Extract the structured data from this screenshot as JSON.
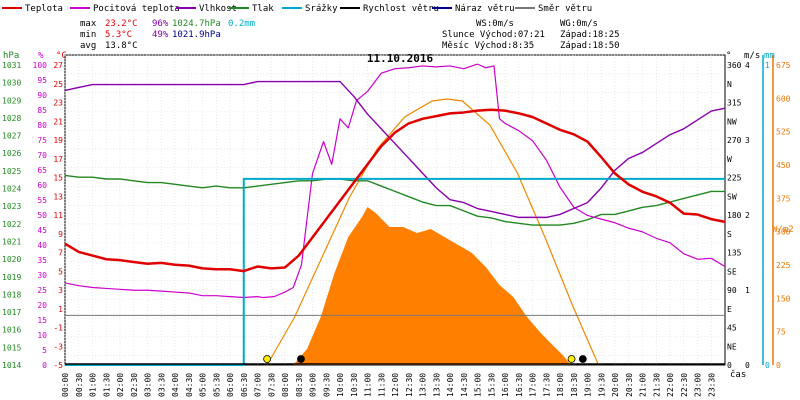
{
  "chart_data": {
    "type": "line",
    "title": "11.10.2016",
    "legend": [
      {
        "label": "Teplota",
        "color": "#e00000"
      },
      {
        "label": "Pocitová teplota",
        "color": "#cc00cc"
      },
      {
        "label": "Vlhkost",
        "color": "#8800aa"
      },
      {
        "label": "Tlak",
        "color": "#228822"
      },
      {
        "label": "Srážky",
        "color": "#00aacc"
      },
      {
        "label": "Rychlost větru",
        "color": "#000000"
      },
      {
        "label": "Náraz větru",
        "color": "#000088"
      },
      {
        "label": "Směr větru",
        "color": "#777777"
      }
    ],
    "stats": {
      "max": {
        "label": "max",
        "temp": "23.2°C",
        "hum": "96%",
        "press": "1024.7hPa",
        "rain": "0.2mm"
      },
      "min": {
        "label": "min",
        "temp": "5.3°C",
        "hum": "49%",
        "press": "1021.9hPa"
      },
      "avg": {
        "label": "avg",
        "temp": "13.8°C"
      }
    },
    "info": {
      "ws": "WS:0m/s",
      "wg": "WG:0m/s",
      "sun": "Slunce Východ:07:21",
      "sun_set": "Západ:18:25",
      "moon": "Měsíc  Východ:8:35",
      "moon_set": "Západ:18:50"
    },
    "axes": {
      "hpa_label": "hPa",
      "pct_label": "%",
      "c_label": "°C",
      "deg_label": "°",
      "ms_label": "m/s",
      "mm_label": "mm",
      "wm2_label": "W/m2",
      "x_label": "čas",
      "hpa_ticks": [
        "1031",
        "1030",
        "1029",
        "1028",
        "1027",
        "1026",
        "1025",
        "1024",
        "1023",
        "1022",
        "1021",
        "1020",
        "1019",
        "1018",
        "1017",
        "1016",
        "1015",
        "1014"
      ],
      "pct_ticks": [
        "100",
        "95",
        "90",
        "85",
        "80",
        "75",
        "70",
        "65",
        "60",
        "55",
        "50",
        "45",
        "40",
        "35",
        "30",
        "25",
        "20",
        "15",
        "10",
        "5",
        "0"
      ],
      "c_ticks": [
        "27",
        "25",
        "23",
        "21",
        "19",
        "17",
        "15",
        "13",
        "11",
        "9",
        "7",
        "5",
        "3",
        "1",
        "-1",
        "-3",
        "-5"
      ],
      "dir_ticks": [
        "360",
        "N",
        "315",
        "NW",
        "270",
        "W",
        "225",
        "SW",
        "180",
        "S",
        "135",
        "SE",
        "90",
        "E",
        "45",
        "NE",
        "0"
      ],
      "wind_ticks": [
        "4",
        "3",
        "2",
        "1",
        "0"
      ],
      "rain_ticks": [
        "1",
        "0"
      ],
      "solar_ticks": [
        "675",
        "600",
        "525",
        "450",
        "375",
        "300",
        "225",
        "150",
        "75",
        "0"
      ],
      "time_ticks": [
        "00:00",
        "00:30",
        "01:00",
        "01:30",
        "02:00",
        "02:30",
        "03:00",
        "03:30",
        "04:00",
        "04:30",
        "05:00",
        "05:30",
        "06:00",
        "06:30",
        "07:00",
        "07:30",
        "08:00",
        "08:30",
        "09:00",
        "09:30",
        "10:00",
        "10:30",
        "11:00",
        "11:30",
        "12:00",
        "12:30",
        "13:00",
        "13:30",
        "14:00",
        "14:30",
        "15:00",
        "15:30",
        "16:00",
        "16:30",
        "17:00",
        "17:30",
        "18:00",
        "18:30",
        "19:00",
        "19:30",
        "20:00",
        "20:30",
        "21:00",
        "21:30",
        "22:00",
        "22:30",
        "23:00",
        "23:30"
      ]
    },
    "series": {
      "temperature_c": {
        "x": [
          0,
          0.5,
          1,
          1.5,
          2,
          2.5,
          3,
          3.5,
          4,
          4.5,
          5,
          5.5,
          6,
          6.5,
          7,
          7.5,
          8,
          8.5,
          9,
          9.5,
          10,
          10.5,
          11,
          11.5,
          12,
          12.5,
          13,
          13.5,
          14,
          14.5,
          15,
          15.5,
          16,
          16.5,
          17,
          17.5,
          18,
          18.5,
          19,
          19.5,
          20,
          20.5,
          21,
          21.5,
          22,
          22.5,
          23,
          23.5,
          24
        ],
        "y": [
          8.3,
          7.4,
          7.0,
          6.6,
          6.5,
          6.3,
          6.1,
          6.2,
          6.0,
          5.9,
          5.6,
          5.5,
          5.5,
          5.3,
          5.8,
          5.6,
          5.7,
          7.0,
          9.0,
          11.0,
          13.0,
          15.0,
          17.0,
          19.0,
          20.5,
          21.5,
          22.0,
          22.3,
          22.6,
          22.7,
          22.9,
          23.0,
          22.9,
          22.6,
          22.2,
          21.5,
          20.8,
          20.3,
          19.5,
          17.8,
          16.0,
          14.8,
          14.0,
          13.5,
          12.8,
          11.6,
          11.5,
          11.0,
          10.7
        ]
      },
      "apparent_temperature_c": {
        "x": [
          0,
          0.5,
          1,
          1.5,
          2,
          2.5,
          3,
          3.5,
          4,
          4.5,
          5,
          5.5,
          6,
          6.5,
          7,
          7.2,
          7.6,
          8.0,
          8.3,
          8.6,
          9.0,
          9.4,
          9.7,
          10.0,
          10.3,
          10.6,
          11.0,
          11.5,
          12.0,
          12.5,
          13.0,
          13.5,
          14.0,
          14.5,
          15.0,
          15.3,
          15.6,
          15.8,
          16.0,
          16.5,
          17.0,
          17.5,
          18.0,
          18.5,
          19.0,
          19.5,
          20.0,
          20.5,
          21.0,
          21.5,
          22.0,
          22.5,
          23.0,
          23.5,
          24
        ],
        "y": [
          4.0,
          3.7,
          3.5,
          3.4,
          3.3,
          3.2,
          3.2,
          3.1,
          3.0,
          2.9,
          2.6,
          2.6,
          2.5,
          2.4,
          2.5,
          2.4,
          2.5,
          3.0,
          3.5,
          6.0,
          16.0,
          19.5,
          17.0,
          22.0,
          21.0,
          24.0,
          25.0,
          27.0,
          27.5,
          27.6,
          27.8,
          27.7,
          27.8,
          27.5,
          28.0,
          27.6,
          27.8,
          22.0,
          21.5,
          20.7,
          19.6,
          17.5,
          14.5,
          12.3,
          11.4,
          11.0,
          10.6,
          10.0,
          9.6,
          8.9,
          8.4,
          7.2,
          6.6,
          6.7,
          5.8
        ]
      },
      "humidity_pct": {
        "x": [
          0,
          0.5,
          1,
          1.5,
          2,
          2.5,
          3,
          3.5,
          4,
          4.5,
          5,
          5.5,
          6,
          6.5,
          7,
          7.5,
          8,
          8.5,
          9,
          9.5,
          10,
          10.5,
          11,
          11.5,
          12,
          12.5,
          13,
          13.5,
          14,
          14.5,
          15,
          15.5,
          16,
          16.5,
          17,
          17.5,
          18,
          18.5,
          19,
          19.5,
          20,
          20.5,
          21,
          21.5,
          22,
          22.5,
          23,
          23.5,
          24
        ],
        "y": [
          93,
          94,
          95,
          95,
          95,
          95,
          95,
          95,
          95,
          95,
          95,
          95,
          95,
          95,
          96,
          96,
          96,
          96,
          96,
          96,
          96,
          91,
          85,
          80,
          75,
          70,
          65,
          60,
          56,
          55,
          53,
          52,
          51,
          50,
          50,
          50,
          51,
          53,
          55,
          60,
          66,
          70,
          72,
          75,
          78,
          80,
          83,
          86,
          87
        ]
      },
      "pressure_hpa": {
        "x": [
          0,
          0.5,
          1,
          1.5,
          2,
          2.5,
          3,
          3.5,
          4,
          4.5,
          5,
          5.5,
          6,
          6.5,
          7,
          7.5,
          8,
          8.5,
          9,
          9.5,
          10,
          10.5,
          11,
          11.5,
          12,
          12.5,
          13,
          13.5,
          14,
          14.5,
          15,
          15.5,
          16,
          16.5,
          17,
          17.5,
          18,
          18.5,
          19,
          19.5,
          20,
          20.5,
          21,
          21.5,
          22,
          22.5,
          23,
          23.5,
          24
        ],
        "y": [
          1024.7,
          1024.6,
          1024.6,
          1024.5,
          1024.5,
          1024.4,
          1024.3,
          1024.3,
          1024.2,
          1024.1,
          1024.0,
          1024.1,
          1024.0,
          1024.0,
          1024.1,
          1024.2,
          1024.3,
          1024.4,
          1024.4,
          1024.5,
          1024.5,
          1024.4,
          1024.4,
          1024.1,
          1023.8,
          1023.5,
          1023.2,
          1023.0,
          1023.0,
          1022.7,
          1022.4,
          1022.3,
          1022.1,
          1022.0,
          1021.9,
          1021.9,
          1021.9,
          1022.0,
          1022.2,
          1022.5,
          1022.5,
          1022.7,
          1022.9,
          1023.0,
          1023.2,
          1023.4,
          1023.6,
          1023.8,
          1023.8
        ]
      },
      "rain_mm": {
        "x": [
          0,
          6.4,
          6.5,
          24
        ],
        "y": [
          0,
          0,
          0.2,
          0.2
        ]
      },
      "solar_wm2": {
        "x": [
          8.3,
          8.8,
          9.3,
          9.8,
          10.3,
          10.8,
          11.0,
          11.3,
          11.8,
          12.3,
          12.8,
          13.3,
          13.8,
          14.3,
          14.8,
          15.3,
          15.8,
          16.3,
          16.8,
          17.3,
          17.8,
          18.1,
          18.4
        ],
        "y": [
          0,
          40,
          120,
          230,
          320,
          370,
          395,
          380,
          345,
          345,
          330,
          340,
          320,
          300,
          280,
          245,
          200,
          170,
          120,
          80,
          45,
          25,
          0
        ]
      },
      "theoretical_solar_wm2": {
        "x": [
          7.35,
          8.35,
          9.35,
          10.35,
          11.35,
          12.35,
          13.35,
          13.9,
          14.45,
          15.45,
          16.45,
          17.45,
          18.45,
          19.4
        ],
        "y": [
          0,
          120,
          270,
          420,
          540,
          620,
          660,
          665,
          660,
          600,
          480,
          320,
          150,
          0
        ]
      },
      "wind_direction_deg": {
        "x": [
          0,
          24
        ],
        "y": [
          60,
          60
        ]
      },
      "wind_speed_ms": {
        "x": [
          0,
          24
        ],
        "y": [
          0,
          0
        ]
      },
      "wind_gust_ms": {
        "x": [
          0,
          24
        ],
        "y": [
          0,
          0
        ]
      }
    },
    "markers": {
      "sunrise": 7.35,
      "sunset": 18.42,
      "moonrise": 8.58,
      "moonset": 18.83
    }
  }
}
